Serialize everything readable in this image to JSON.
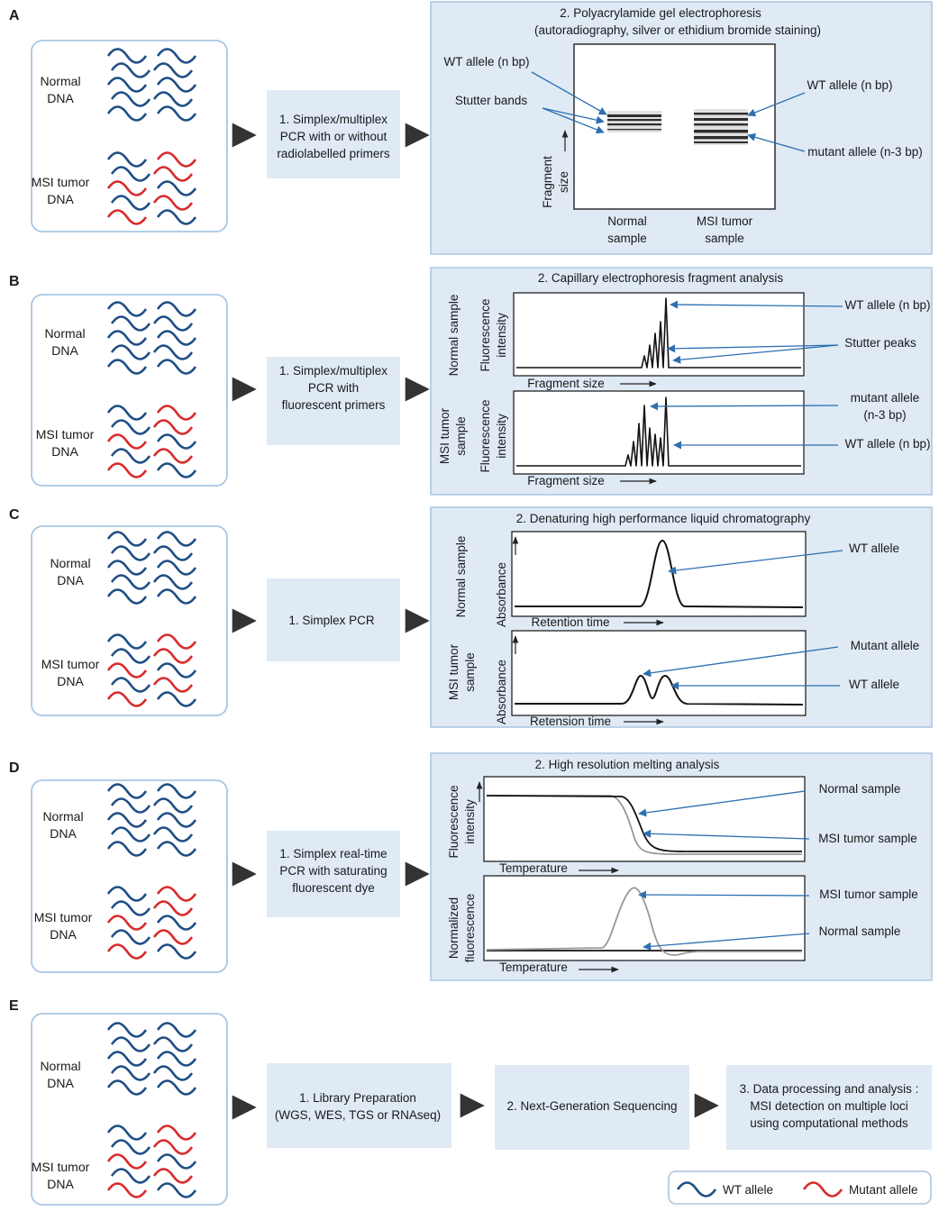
{
  "colors": {
    "panel_fill": "#dfeaf5",
    "panel_stroke": "#a9c6e2",
    "wt": "#1f4e86",
    "mutant": "#d82b2b",
    "arrow": "#2d6fb0",
    "trace_gray": "#999999"
  },
  "common": {
    "normal_dna": [
      "Normal",
      "DNA"
    ],
    "tumor_dna": [
      "MSI tumor",
      "DNA"
    ]
  },
  "panelA": {
    "letter": "A",
    "step1": [
      "1. Simplex/multiplex",
      "PCR with or without",
      "radiolabelled primers"
    ],
    "title": [
      "2. Polyacrylamide gel electrophoresis",
      "(autoradiography, silver or ethidium bromide staining)"
    ],
    "wt_left": "WT allele (n bp)",
    "stutter": "Stutter bands",
    "wt_right": "WT allele (n bp)",
    "mutant": "mutant allele (n-3 bp)",
    "yaxis": [
      "Fragment",
      "size"
    ],
    "lane_normal": [
      "Normal",
      "sample"
    ],
    "lane_tumor": [
      "MSI tumor",
      "sample"
    ]
  },
  "panelB": {
    "letter": "B",
    "step1": [
      "1. Simplex/multiplex",
      "PCR with",
      "fluorescent primers"
    ],
    "title": "2. Capillary electrophoresis fragment analysis",
    "side_normal": "Normal sample",
    "side_tumor": [
      "MSI tumor",
      "sample"
    ],
    "ylabel": [
      "Fluorescence",
      "intensity"
    ],
    "xlabel": "Fragment size",
    "wt1": "WT allele (n bp)",
    "stutter": "Stutter peaks",
    "mutant": [
      "mutant allele",
      "(n-3 bp)"
    ],
    "wt2": "WT allele (n bp)"
  },
  "panelC": {
    "letter": "C",
    "step1": "1. Simplex PCR",
    "title": "2. Denaturing high performance liquid chromatography",
    "side_normal": "Normal sample",
    "side_tumor": [
      "MSI tumor",
      "sample"
    ],
    "ylabel": "Absorbance",
    "xlabel1": "Retention time",
    "xlabel2": "Retension time",
    "wt1": "WT allele",
    "mutant": "Mutant allele",
    "wt2": "WT allele"
  },
  "panelD": {
    "letter": "D",
    "step1": [
      "1. Simplex real-time",
      "PCR with saturating",
      "fluorescent dye"
    ],
    "title": "2. High resolution melting analysis",
    "ylabel1": [
      "Fluorescence",
      "intensity"
    ],
    "ylabel2": [
      "Normalized",
      "fluorescence"
    ],
    "xlabel": "Temperature",
    "normal1": "Normal sample",
    "tumor1": "MSI tumor sample",
    "tumor2": "MSI tumor sample",
    "normal2": "Normal sample"
  },
  "panelE": {
    "letter": "E",
    "step1": [
      "1. Library Preparation",
      "(WGS, WES, TGS or RNAseq)"
    ],
    "step2": "2. Next-Generation Sequencing",
    "step3": [
      "3. Data processing and analysis :",
      "MSI detection on multiple loci",
      "using computational methods"
    ]
  },
  "legend": {
    "wt": "WT allele",
    "mutant": "Mutant allele"
  }
}
